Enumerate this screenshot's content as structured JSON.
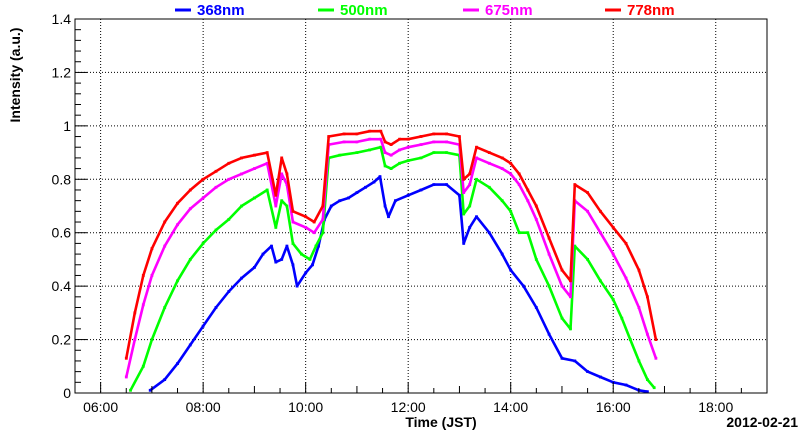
{
  "chart_data": {
    "type": "scatter",
    "title": "",
    "xlabel": "Time (JST)",
    "ylabel": "Intensity (a.u.)",
    "date": "2012-02-21",
    "xlim": [
      "05:30",
      "19:00"
    ],
    "ylim": [
      0,
      1.4
    ],
    "x_ticks": [
      "06:00",
      "08:00",
      "10:00",
      "12:00",
      "14:00",
      "16:00",
      "18:00"
    ],
    "y_ticks": [
      "0",
      "0.2",
      "0.4",
      "0.6",
      "0.8",
      "1",
      "1.2",
      "1.4"
    ],
    "grid": true,
    "legend_position": "top",
    "series": [
      {
        "name": "368nm",
        "color": "#0000ff",
        "points": [
          [
            "06:58",
            0.01
          ],
          [
            "07:15",
            0.05
          ],
          [
            "07:30",
            0.11
          ],
          [
            "07:45",
            0.18
          ],
          [
            "08:00",
            0.25
          ],
          [
            "08:15",
            0.32
          ],
          [
            "08:30",
            0.38
          ],
          [
            "08:45",
            0.43
          ],
          [
            "09:00",
            0.47
          ],
          [
            "09:10",
            0.52
          ],
          [
            "09:20",
            0.55
          ],
          [
            "09:25",
            0.49
          ],
          [
            "09:32",
            0.5
          ],
          [
            "09:38",
            0.55
          ],
          [
            "09:45",
            0.48
          ],
          [
            "09:50",
            0.4
          ],
          [
            "10:00",
            0.45
          ],
          [
            "10:08",
            0.48
          ],
          [
            "10:15",
            0.55
          ],
          [
            "10:22",
            0.65
          ],
          [
            "10:30",
            0.7
          ],
          [
            "10:40",
            0.72
          ],
          [
            "10:50",
            0.73
          ],
          [
            "11:00",
            0.75
          ],
          [
            "11:10",
            0.77
          ],
          [
            "11:20",
            0.79
          ],
          [
            "11:27",
            0.81
          ],
          [
            "11:33",
            0.7
          ],
          [
            "11:37",
            0.66
          ],
          [
            "11:45",
            0.72
          ],
          [
            "12:00",
            0.74
          ],
          [
            "12:15",
            0.76
          ],
          [
            "12:30",
            0.78
          ],
          [
            "12:45",
            0.78
          ],
          [
            "13:00",
            0.74
          ],
          [
            "13:05",
            0.56
          ],
          [
            "13:12",
            0.62
          ],
          [
            "13:20",
            0.66
          ],
          [
            "13:35",
            0.6
          ],
          [
            "13:50",
            0.52
          ],
          [
            "14:00",
            0.46
          ],
          [
            "14:15",
            0.4
          ],
          [
            "14:30",
            0.32
          ],
          [
            "14:45",
            0.22
          ],
          [
            "15:00",
            0.13
          ],
          [
            "15:15",
            0.12
          ],
          [
            "15:30",
            0.08
          ],
          [
            "15:45",
            0.06
          ],
          [
            "16:00",
            0.04
          ],
          [
            "16:15",
            0.03
          ],
          [
            "16:30",
            0.01
          ],
          [
            "16:40",
            0.005
          ]
        ]
      },
      {
        "name": "500nm",
        "color": "#00ff00",
        "points": [
          [
            "06:35",
            0.01
          ],
          [
            "06:50",
            0.1
          ],
          [
            "07:00",
            0.2
          ],
          [
            "07:15",
            0.32
          ],
          [
            "07:30",
            0.42
          ],
          [
            "07:45",
            0.5
          ],
          [
            "08:00",
            0.56
          ],
          [
            "08:15",
            0.61
          ],
          [
            "08:30",
            0.65
          ],
          [
            "08:45",
            0.7
          ],
          [
            "09:00",
            0.73
          ],
          [
            "09:15",
            0.76
          ],
          [
            "09:25",
            0.62
          ],
          [
            "09:32",
            0.72
          ],
          [
            "09:38",
            0.7
          ],
          [
            "09:45",
            0.56
          ],
          [
            "09:55",
            0.52
          ],
          [
            "10:05",
            0.5
          ],
          [
            "10:12",
            0.55
          ],
          [
            "10:20",
            0.6
          ],
          [
            "10:27",
            0.88
          ],
          [
            "10:40",
            0.89
          ],
          [
            "11:00",
            0.9
          ],
          [
            "11:15",
            0.91
          ],
          [
            "11:28",
            0.92
          ],
          [
            "11:33",
            0.85
          ],
          [
            "11:40",
            0.84
          ],
          [
            "11:50",
            0.86
          ],
          [
            "12:00",
            0.87
          ],
          [
            "12:15",
            0.88
          ],
          [
            "12:30",
            0.9
          ],
          [
            "12:45",
            0.9
          ],
          [
            "13:00",
            0.89
          ],
          [
            "13:05",
            0.67
          ],
          [
            "13:12",
            0.7
          ],
          [
            "13:20",
            0.8
          ],
          [
            "13:35",
            0.77
          ],
          [
            "13:50",
            0.72
          ],
          [
            "14:00",
            0.68
          ],
          [
            "14:10",
            0.6
          ],
          [
            "14:20",
            0.6
          ],
          [
            "14:30",
            0.5
          ],
          [
            "14:45",
            0.4
          ],
          [
            "15:00",
            0.28
          ],
          [
            "15:10",
            0.24
          ],
          [
            "15:15",
            0.55
          ],
          [
            "15:30",
            0.5
          ],
          [
            "15:45",
            0.42
          ],
          [
            "16:00",
            0.35
          ],
          [
            "16:10",
            0.28
          ],
          [
            "16:20",
            0.2
          ],
          [
            "16:30",
            0.12
          ],
          [
            "16:40",
            0.05
          ],
          [
            "16:48",
            0.02
          ]
        ]
      },
      {
        "name": "675nm",
        "color": "#ff00ff",
        "points": [
          [
            "06:30",
            0.06
          ],
          [
            "06:40",
            0.2
          ],
          [
            "06:50",
            0.33
          ],
          [
            "07:00",
            0.44
          ],
          [
            "07:15",
            0.55
          ],
          [
            "07:30",
            0.63
          ],
          [
            "07:45",
            0.69
          ],
          [
            "08:00",
            0.73
          ],
          [
            "08:15",
            0.77
          ],
          [
            "08:30",
            0.8
          ],
          [
            "08:45",
            0.82
          ],
          [
            "09:00",
            0.84
          ],
          [
            "09:15",
            0.86
          ],
          [
            "09:25",
            0.7
          ],
          [
            "09:32",
            0.82
          ],
          [
            "09:38",
            0.78
          ],
          [
            "09:45",
            0.64
          ],
          [
            "10:00",
            0.62
          ],
          [
            "10:10",
            0.6
          ],
          [
            "10:20",
            0.65
          ],
          [
            "10:27",
            0.93
          ],
          [
            "10:45",
            0.94
          ],
          [
            "11:00",
            0.94
          ],
          [
            "11:15",
            0.95
          ],
          [
            "11:28",
            0.95
          ],
          [
            "11:33",
            0.9
          ],
          [
            "11:40",
            0.89
          ],
          [
            "11:50",
            0.91
          ],
          [
            "12:00",
            0.92
          ],
          [
            "12:15",
            0.93
          ],
          [
            "12:30",
            0.94
          ],
          [
            "12:45",
            0.94
          ],
          [
            "13:00",
            0.93
          ],
          [
            "13:05",
            0.75
          ],
          [
            "13:12",
            0.78
          ],
          [
            "13:20",
            0.88
          ],
          [
            "13:35",
            0.86
          ],
          [
            "13:50",
            0.84
          ],
          [
            "14:00",
            0.82
          ],
          [
            "14:10",
            0.78
          ],
          [
            "14:20",
            0.72
          ],
          [
            "14:30",
            0.65
          ],
          [
            "14:45",
            0.52
          ],
          [
            "15:00",
            0.4
          ],
          [
            "15:10",
            0.36
          ],
          [
            "15:15",
            0.72
          ],
          [
            "15:30",
            0.68
          ],
          [
            "15:45",
            0.6
          ],
          [
            "16:00",
            0.52
          ],
          [
            "16:15",
            0.43
          ],
          [
            "16:30",
            0.32
          ],
          [
            "16:40",
            0.22
          ],
          [
            "16:50",
            0.13
          ]
        ]
      },
      {
        "name": "778nm",
        "color": "#ff0000",
        "points": [
          [
            "06:30",
            0.13
          ],
          [
            "06:40",
            0.3
          ],
          [
            "06:50",
            0.44
          ],
          [
            "07:00",
            0.54
          ],
          [
            "07:15",
            0.64
          ],
          [
            "07:30",
            0.71
          ],
          [
            "07:45",
            0.76
          ],
          [
            "08:00",
            0.8
          ],
          [
            "08:15",
            0.83
          ],
          [
            "08:30",
            0.86
          ],
          [
            "08:45",
            0.88
          ],
          [
            "09:00",
            0.89
          ],
          [
            "09:15",
            0.9
          ],
          [
            "09:25",
            0.74
          ],
          [
            "09:32",
            0.88
          ],
          [
            "09:38",
            0.82
          ],
          [
            "09:45",
            0.68
          ],
          [
            "10:00",
            0.66
          ],
          [
            "10:10",
            0.64
          ],
          [
            "10:20",
            0.7
          ],
          [
            "10:27",
            0.96
          ],
          [
            "10:45",
            0.97
          ],
          [
            "11:00",
            0.97
          ],
          [
            "11:15",
            0.98
          ],
          [
            "11:28",
            0.98
          ],
          [
            "11:33",
            0.94
          ],
          [
            "11:40",
            0.93
          ],
          [
            "11:50",
            0.95
          ],
          [
            "12:00",
            0.95
          ],
          [
            "12:15",
            0.96
          ],
          [
            "12:30",
            0.97
          ],
          [
            "12:45",
            0.97
          ],
          [
            "13:00",
            0.96
          ],
          [
            "13:05",
            0.8
          ],
          [
            "13:12",
            0.82
          ],
          [
            "13:20",
            0.92
          ],
          [
            "13:35",
            0.9
          ],
          [
            "13:50",
            0.88
          ],
          [
            "14:00",
            0.86
          ],
          [
            "14:10",
            0.82
          ],
          [
            "14:20",
            0.76
          ],
          [
            "14:30",
            0.7
          ],
          [
            "14:45",
            0.58
          ],
          [
            "15:00",
            0.46
          ],
          [
            "15:10",
            0.42
          ],
          [
            "15:15",
            0.78
          ],
          [
            "15:30",
            0.75
          ],
          [
            "15:45",
            0.68
          ],
          [
            "16:00",
            0.62
          ],
          [
            "16:15",
            0.56
          ],
          [
            "16:30",
            0.46
          ],
          [
            "16:40",
            0.36
          ],
          [
            "16:50",
            0.2
          ]
        ]
      }
    ]
  }
}
